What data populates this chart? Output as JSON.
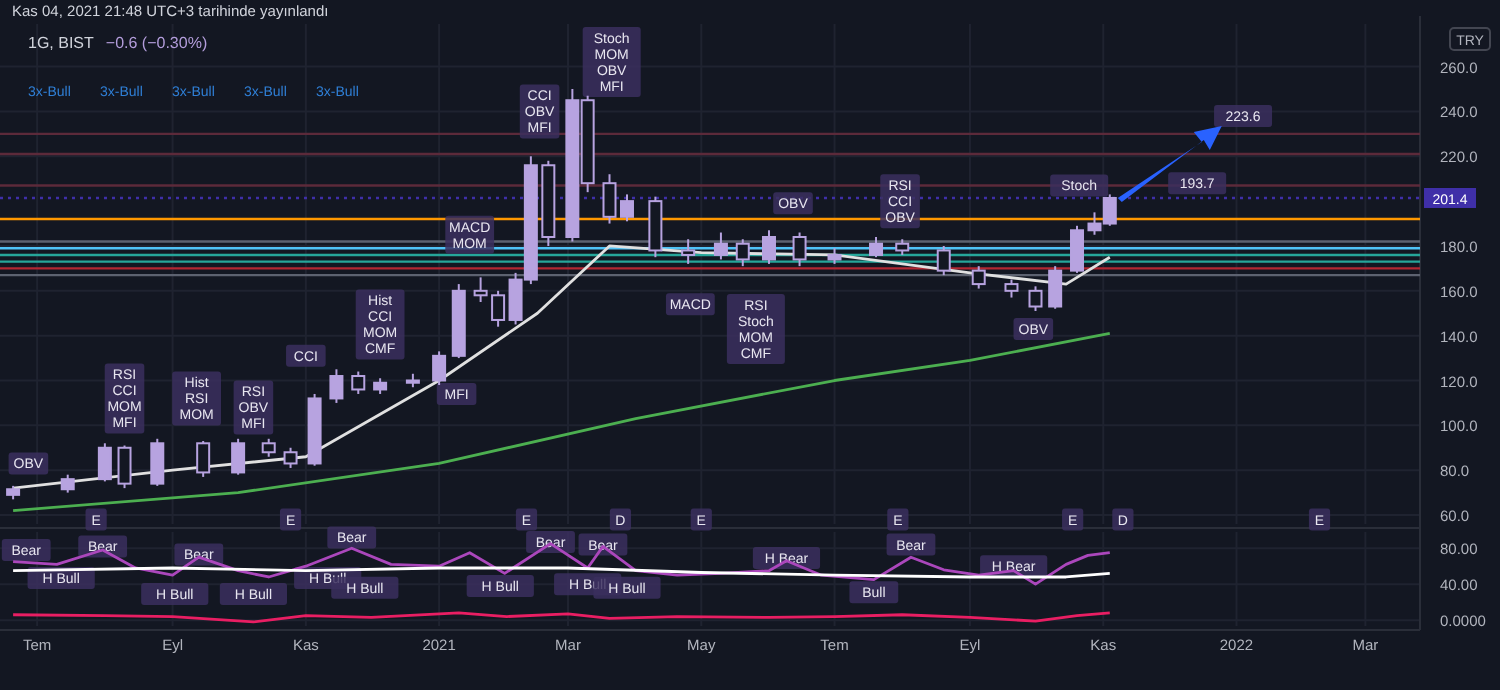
{
  "chart_data": [
    {
      "type": "candlestick",
      "title": "1G, BIST",
      "subtitle": "−0.6 (−0.30%)",
      "ylabel": "TRY",
      "color": "#b7a3e0",
      "grid": true,
      "tick_labels": "y",
      "xlim": [
        "2020-06-14",
        "2022-03-26"
      ],
      "ylim": [
        56,
        279
      ],
      "xticks": [
        {
          "value": "2020-07-01",
          "label": null
        },
        {
          "value": "2020-09-01",
          "label": null
        },
        {
          "value": "2020-11-01",
          "label": null
        },
        {
          "value": "2021-01-01",
          "label": null
        },
        {
          "value": "2021-03-01",
          "label": null
        },
        {
          "value": "2021-05-01",
          "label": null
        },
        {
          "value": "2021-07-01",
          "label": null
        },
        {
          "value": "2021-09-01",
          "label": null
        },
        {
          "value": "2021-11-01",
          "label": null
        },
        {
          "value": "2022-01-01",
          "label": null
        },
        {
          "value": "2022-03-01",
          "label": null
        }
      ],
      "yticks": [
        {
          "value": 60,
          "label": "60.0"
        },
        {
          "value": 80,
          "label": "80.0"
        },
        {
          "value": 100,
          "label": "100.0"
        },
        {
          "value": 120,
          "label": "120.0"
        },
        {
          "value": 140,
          "label": "140.0"
        },
        {
          "value": 160,
          "label": "160.0"
        },
        {
          "value": 180,
          "label": "180.0"
        },
        {
          "value": 220,
          "label": "220.0"
        },
        {
          "value": 240,
          "label": "240.0"
        },
        {
          "value": 260,
          "label": "260.0"
        }
      ],
      "x": [
        "2020-06-20",
        "2020-07-15",
        "2020-08-01",
        "2020-08-10",
        "2020-08-25",
        "2020-09-15",
        "2020-10-01",
        "2020-10-15",
        "2020-10-25",
        "2020-11-05",
        "2020-11-15",
        "2020-11-25",
        "2020-12-05",
        "2020-12-20",
        "2021-01-01",
        "2021-01-10",
        "2021-01-20",
        "2021-01-28",
        "2021-02-05",
        "2021-02-12",
        "2021-02-20",
        "2021-03-03",
        "2021-03-10",
        "2021-03-20",
        "2021-03-28",
        "2021-04-10",
        "2021-04-25",
        "2021-05-10",
        "2021-05-20",
        "2021-06-01",
        "2021-06-15",
        "2021-07-01",
        "2021-07-20",
        "2021-08-01",
        "2021-08-20",
        "2021-09-05",
        "2021-09-20",
        "2021-10-01",
        "2021-10-10",
        "2021-10-20",
        "2021-10-28",
        "2021-11-04"
      ],
      "ohlc": [
        [
          69,
          73,
          67,
          71.5
        ],
        [
          71.5,
          78,
          70,
          76
        ],
        [
          76,
          92,
          75,
          90
        ],
        [
          90,
          91,
          72,
          74
        ],
        [
          74,
          94,
          73,
          92
        ],
        [
          92,
          93,
          77,
          79
        ],
        [
          79,
          94,
          78,
          92
        ],
        [
          92,
          94,
          86,
          88
        ],
        [
          88,
          90,
          81,
          83
        ],
        [
          83,
          114,
          82,
          112
        ],
        [
          112,
          125,
          110,
          122
        ],
        [
          122,
          124,
          114,
          116
        ],
        [
          116,
          121,
          114,
          119
        ],
        [
          119,
          123,
          117,
          120
        ],
        [
          120,
          133,
          118,
          131
        ],
        [
          131,
          163,
          130,
          160
        ],
        [
          160,
          166,
          155,
          158
        ],
        [
          158,
          160,
          144,
          147
        ],
        [
          147,
          168,
          145,
          165
        ],
        [
          165,
          220,
          163,
          216
        ],
        [
          216,
          218,
          180,
          184
        ],
        [
          184,
          250,
          182,
          245
        ],
        [
          245,
          247,
          204,
          208
        ],
        [
          208,
          212,
          190,
          193
        ],
        [
          193,
          203,
          191,
          200
        ],
        [
          200,
          202,
          175,
          178
        ],
        [
          178,
          183,
          172,
          176
        ],
        [
          176,
          186,
          174,
          181
        ],
        [
          181,
          183,
          171,
          174
        ],
        [
          174,
          187,
          172,
          184
        ],
        [
          184,
          186,
          171,
          174
        ],
        [
          174,
          179,
          172,
          176
        ],
        [
          176,
          184,
          175,
          181
        ],
        [
          181,
          183,
          176,
          178
        ],
        [
          178,
          180,
          167,
          169
        ],
        [
          169,
          171,
          161,
          163
        ],
        [
          163,
          165,
          157,
          160
        ],
        [
          160,
          162,
          151,
          153
        ],
        [
          153,
          171,
          152,
          169
        ],
        [
          169,
          189,
          168,
          187
        ],
        [
          187,
          195,
          185,
          190
        ],
        [
          190,
          203,
          189,
          201.4
        ]
      ],
      "series": [
        {
          "type": "line",
          "color": "#e0e0e0",
          "x": [
            "2020-06-20",
            "2020-09-01",
            "2020-11-01",
            "2021-01-01",
            "2021-02-15",
            "2021-03-20",
            "2021-05-01",
            "2021-07-01",
            "2021-09-01",
            "2021-10-15",
            "2021-11-04"
          ],
          "values": [
            72,
            80,
            86,
            120,
            150,
            180,
            177,
            176,
            168,
            163,
            175
          ]
        },
        {
          "type": "line",
          "color": "#4caf50",
          "x": [
            "2020-06-20",
            "2020-10-01",
            "2021-01-01",
            "2021-04-01",
            "2021-07-01",
            "2021-09-01",
            "2021-11-04"
          ],
          "values": [
            62,
            70,
            83,
            103,
            120,
            129,
            141
          ]
        }
      ],
      "ref_lines": [
        {
          "axis": "y",
          "value": 192,
          "color": "#ff9800"
        },
        {
          "axis": "y",
          "value": 230,
          "color": "#5c2a3a"
        },
        {
          "axis": "y",
          "value": 221,
          "color": "#5c2a3a"
        },
        {
          "axis": "y",
          "value": 207,
          "color": "#5c2a3a"
        },
        {
          "axis": "y",
          "value": 182,
          "color": "#5d6270"
        },
        {
          "axis": "y",
          "value": 179,
          "color": "#4fc3f7"
        },
        {
          "axis": "y",
          "value": 176,
          "color": "#26a69a"
        },
        {
          "axis": "y",
          "value": 173,
          "color": "#26a69a"
        },
        {
          "axis": "y",
          "value": 170,
          "color": "#b22833"
        },
        {
          "axis": "y",
          "value": 167,
          "color": "#5d6270"
        },
        {
          "axis": "y",
          "value": 201.4,
          "label": "201.4",
          "color": "#3f2fa8",
          "line_style": "dotted"
        }
      ],
      "annotations": [
        "Kas 04, 2021 21:48 UTC+3 tarihinde yayınlandı",
        {
          "text": "OBV",
          "x": "2020-06-27",
          "y": 83
        },
        {
          "text": "Hist\nRSI\nMOM",
          "x": "2020-09-12",
          "y": 112
        },
        {
          "text": "CCI",
          "x": "2020-11-01",
          "y": 131
        },
        {
          "text": "RSI\nCCI\nMOM\nMFI",
          "x": "2020-08-10",
          "y": 112
        },
        {
          "text": "RSI\nOBV\nMFI",
          "x": "2020-10-08",
          "y": 108
        },
        {
          "text": "Hist\nCCI\nMOM\nCMF",
          "x": "2020-12-05",
          "y": 145
        },
        {
          "text": "MFI",
          "x": "2021-01-09",
          "y": 114
        },
        {
          "text": "MACD\nMOM",
          "x": "2021-01-15",
          "y": 185
        },
        {
          "text": "CCI\nOBV\nMFI",
          "x": "2021-02-16",
          "y": 240
        },
        {
          "text": "Stoch\nMOM\nOBV\nMFI",
          "x": "2021-03-21",
          "y": 262
        },
        {
          "text": "MACD",
          "x": "2021-04-26",
          "y": 154
        },
        {
          "text": "RSI\nStoch\nMOM\nCMF",
          "x": "2021-05-26",
          "y": 143
        },
        {
          "text": "OBV",
          "x": "2021-06-12",
          "y": 199
        },
        {
          "text": "RSI\nCCI\nOBV",
          "x": "2021-07-31",
          "y": 200
        },
        {
          "text": "OBV",
          "x": "2021-09-30",
          "y": 143
        },
        {
          "text": "Stoch",
          "x": "2021-10-21",
          "y": 207
        },
        "3x-Bull",
        "3x-Bull",
        "3x-Bull",
        "3x-Bull",
        "3x-Bull",
        {
          "text": "223.6",
          "x": "2022-01-04",
          "y": 238
        },
        {
          "text": "193.7",
          "x": "2021-12-14",
          "y": 208
        },
        {
          "text": "E",
          "x": "2020-07-28",
          "y": 58
        },
        {
          "text": "E",
          "x": "2020-10-25",
          "y": 58
        },
        {
          "text": "E",
          "x": "2021-02-10",
          "y": 58
        },
        {
          "text": "D",
          "x": "2021-03-25",
          "y": 58
        },
        {
          "text": "E",
          "x": "2021-05-01",
          "y": 58
        },
        {
          "text": "E",
          "x": "2021-07-30",
          "y": 58
        },
        {
          "text": "E",
          "x": "2021-10-18",
          "y": 58
        },
        {
          "text": "D",
          "x": "2021-11-10",
          "y": 58
        },
        {
          "text": "E",
          "x": "2022-02-08",
          "y": 58
        }
      ]
    },
    {
      "type": "line",
      "grid": true,
      "xlim": [
        "2020-06-14",
        "2022-03-26"
      ],
      "ylim": [
        -6.5,
        98
      ],
      "xticks": [
        {
          "value": "2020-07-01",
          "label": "Tem"
        },
        {
          "value": "2020-09-01",
          "label": "Eyl"
        },
        {
          "value": "2020-11-01",
          "label": "Kas"
        },
        {
          "value": "2021-01-01",
          "label": "2021"
        },
        {
          "value": "2021-03-01",
          "label": "Mar"
        },
        {
          "value": "2021-05-01",
          "label": "May"
        },
        {
          "value": "2021-07-01",
          "label": "Tem"
        },
        {
          "value": "2021-09-01",
          "label": "Eyl"
        },
        {
          "value": "2021-11-01",
          "label": "Kas"
        },
        {
          "value": "2022-01-01",
          "label": "2022"
        },
        {
          "value": "2022-03-01",
          "label": "Mar"
        }
      ],
      "yticks": [
        {
          "value": 0,
          "label": "0.0000"
        },
        {
          "value": 40,
          "label": "40.00"
        },
        {
          "value": 80,
          "label": "80.00"
        }
      ],
      "series": [
        {
          "color": "#ab47bc",
          "x": [
            "2020-06-20",
            "2020-07-10",
            "2020-07-31",
            "2020-08-15",
            "2020-09-01",
            "2020-09-13",
            "2020-10-01",
            "2020-10-15",
            "2020-11-01",
            "2020-11-22",
            "2020-12-10",
            "2021-01-01",
            "2021-01-15",
            "2021-01-31",
            "2021-02-21",
            "2021-03-10",
            "2021-03-17",
            "2021-04-01",
            "2021-04-20",
            "2021-05-10",
            "2021-06-01",
            "2021-06-09",
            "2021-06-25",
            "2021-07-19",
            "2021-08-05",
            "2021-08-20",
            "2021-09-05",
            "2021-09-21",
            "2021-10-01",
            "2021-10-15",
            "2021-10-25",
            "2021-11-04"
          ],
          "values": [
            65,
            62,
            78,
            58,
            50,
            70,
            55,
            48,
            60,
            80,
            62,
            60,
            75,
            52,
            85,
            58,
            82,
            55,
            50,
            52,
            55,
            66,
            50,
            45,
            70,
            56,
            50,
            55,
            40,
            62,
            72,
            75
          ]
        },
        {
          "color": "#ffffff",
          "x": [
            "2020-06-20",
            "2020-09-01",
            "2020-11-01",
            "2021-01-01",
            "2021-03-01",
            "2021-05-01",
            "2021-07-01",
            "2021-09-01",
            "2021-10-15",
            "2021-11-04"
          ],
          "values": [
            55,
            58,
            55,
            58,
            58,
            53,
            50,
            48,
            48,
            52
          ]
        },
        {
          "color": "#e91e63",
          "x": [
            "2020-06-20",
            "2020-08-01",
            "2020-09-01",
            "2020-10-08",
            "2020-11-01",
            "2020-12-01",
            "2021-01-10",
            "2021-02-01",
            "2021-03-01",
            "2021-03-20",
            "2021-04-20",
            "2021-06-01",
            "2021-07-01",
            "2021-08-01",
            "2021-09-01",
            "2021-10-01",
            "2021-10-20",
            "2021-11-04"
          ],
          "values": [
            6,
            5,
            4,
            -2,
            5,
            3,
            8,
            4,
            7,
            2,
            4,
            3,
            4,
            6,
            3,
            -1,
            5,
            8
          ]
        }
      ],
      "annotations": [
        {
          "text": "Bear",
          "x": "2020-06-26",
          "y": 78
        },
        {
          "text": "Bear",
          "x": "2020-07-31",
          "y": 82
        },
        {
          "text": "Bear",
          "x": "2020-09-13",
          "y": 73
        },
        {
          "text": "Bear",
          "x": "2020-11-22",
          "y": 92
        },
        {
          "text": "Bear",
          "x": "2021-02-21",
          "y": 87
        },
        {
          "text": "Bear",
          "x": "2021-03-17",
          "y": 84
        },
        {
          "text": "H Bear",
          "x": "2021-06-09",
          "y": 69
        },
        {
          "text": "Bear",
          "x": "2021-08-05",
          "y": 84
        },
        {
          "text": "H Bear",
          "x": "2021-09-21",
          "y": 60
        },
        {
          "text": "H Bull",
          "x": "2020-07-12",
          "y": 47
        },
        {
          "text": "H Bull",
          "x": "2020-09-02",
          "y": 29
        },
        {
          "text": "H Bull",
          "x": "2020-10-08",
          "y": 29
        },
        {
          "text": "H Bull",
          "x": "2020-11-11",
          "y": 47
        },
        {
          "text": "H Bull",
          "x": "2020-11-28",
          "y": 36
        },
        {
          "text": "H Bull",
          "x": "2021-01-29",
          "y": 38
        },
        {
          "text": "H Bull",
          "x": "2021-03-10",
          "y": 40
        },
        {
          "text": "H Bull",
          "x": "2021-03-28",
          "y": 36
        },
        {
          "text": "Bull",
          "x": "2021-07-19",
          "y": 31
        }
      ]
    }
  ]
}
